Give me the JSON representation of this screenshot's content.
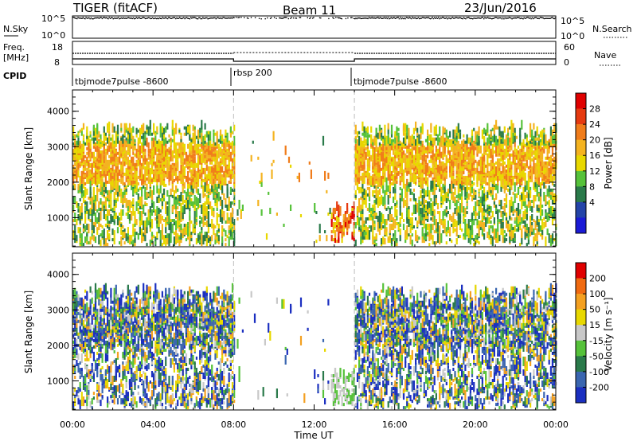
{
  "header": {
    "title": "TIGER (fitACF)",
    "beam": "Beam 11",
    "date": "23/Jun/2016"
  },
  "top_panel": {
    "left_label": "N.Sky",
    "left_ticks": [
      "10^5",
      "10^0"
    ],
    "right_label": "N.Search",
    "right_ticks": [
      "10^5",
      "10^0"
    ]
  },
  "freq_panel": {
    "left_label_line1": "Freq.",
    "left_label_line2": "[MHz]",
    "left_ticks": [
      "18",
      "8"
    ],
    "right_label": "Nave",
    "right_ticks": [
      "60",
      "0"
    ]
  },
  "cpid": {
    "label": "CPID",
    "segments": [
      {
        "name": "tbjmode7pulse -8600",
        "start_ut": "00:00"
      },
      {
        "name": "rbsp 200",
        "start_ut": "08:00"
      },
      {
        "name": "tbjmode7pulse -8600",
        "start_ut": "14:00"
      }
    ]
  },
  "power_panel": {
    "ylabel": "Slant Range [km]",
    "yticks": [
      "4000",
      "3000",
      "2000",
      "1000"
    ],
    "colorbar_label": "Power [dB]",
    "colorbar_ticks": [
      "28",
      "24",
      "20",
      "16",
      "12",
      "8",
      "4"
    ],
    "colors": [
      "#1b1bd6",
      "#2444a8",
      "#2a7a4a",
      "#56c23a",
      "#e8d800",
      "#f4b320",
      "#f07c1a",
      "#e63a10",
      "#e00000"
    ]
  },
  "velocity_panel": {
    "ylabel": "Slant Range [km]",
    "yticks": [
      "4000",
      "3000",
      "2000",
      "1000"
    ],
    "colorbar_label": "Velocity [m s⁻¹]",
    "colorbar_ticks": [
      "200",
      "100",
      "50",
      "15",
      "-15",
      "-50",
      "-100",
      "-200"
    ],
    "colors": [
      "#1b2fc0",
      "#3a66b0",
      "#2a7a4a",
      "#56c23a",
      "#c8c8c8",
      "#e8d800",
      "#f4a020",
      "#f06a10",
      "#e00000"
    ]
  },
  "xaxis": {
    "label": "Time UT",
    "ticks": [
      "00:00",
      "04:00",
      "08:00",
      "12:00",
      "16:00",
      "20:00",
      "00:00"
    ]
  },
  "chart_data": {
    "type": "heatmap",
    "title": "TIGER (fitACF)",
    "x_range_ut_hours": [
      0,
      24
    ],
    "y_range_km": [
      180,
      4600
    ],
    "mode_changes_ut_hours": [
      8,
      14
    ],
    "series": [
      {
        "name": "Power [dB]",
        "range": [
          0,
          32
        ]
      },
      {
        "name": "Velocity [m s⁻¹]",
        "range": [
          -250,
          250
        ]
      }
    ],
    "scatter_regions": [
      {
        "t_start": 0,
        "t_end": 8,
        "r_min": 200,
        "r_max": 3500,
        "density": "high",
        "note": "dense backscatter, strongest at 2000-3000 km"
      },
      {
        "t_start": 8,
        "t_end": 8.4,
        "r_min": 900,
        "r_max": 1300,
        "density": "medium",
        "note": "near-range patch"
      },
      {
        "t_start": 12.8,
        "t_end": 14,
        "r_min": 250,
        "r_max": 1200,
        "density": "high",
        "note": "strong near-range echoes, power 16-28 dB"
      },
      {
        "t_start": 14,
        "t_end": 24,
        "r_min": 200,
        "r_max": 3500,
        "density": "high",
        "note": "dense backscatter"
      }
    ]
  }
}
